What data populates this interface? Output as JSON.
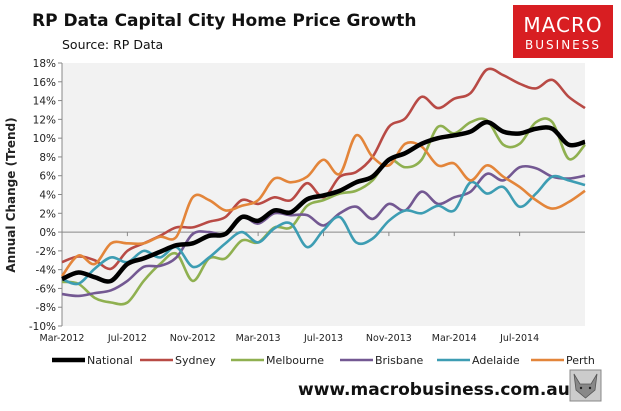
{
  "chart_data": {
    "type": "line",
    "title": "RP Data Capital City Home Price Growth",
    "subtitle": "Source: RP Data",
    "xlabel": "",
    "ylabel": "Annual Change (Trend)",
    "ylim": [
      -10,
      18
    ],
    "y_ticks": [
      "18%",
      "16%",
      "14%",
      "12%",
      "10%",
      "8%",
      "6%",
      "4%",
      "2%",
      "0%",
      "-2%",
      "-4%",
      "-6%",
      "-8%",
      "-10%"
    ],
    "x_ticks": [
      "Mar-2012",
      "Jul-2012",
      "Nov-2012",
      "Mar-2013",
      "Jul-2013",
      "Nov-2013",
      "Mar-2014",
      "Jul-2014"
    ],
    "x": [
      "Mar-2012",
      "Apr-2012",
      "May-2012",
      "Jun-2012",
      "Jul-2012",
      "Aug-2012",
      "Sep-2012",
      "Oct-2012",
      "Nov-2012",
      "Dec-2012",
      "Jan-2013",
      "Feb-2013",
      "Mar-2013",
      "Apr-2013",
      "May-2013",
      "Jun-2013",
      "Jul-2013",
      "Aug-2013",
      "Sep-2013",
      "Oct-2013",
      "Nov-2013",
      "Dec-2013",
      "Jan-2014",
      "Feb-2014",
      "Mar-2014",
      "Apr-2014",
      "May-2014",
      "Jun-2014",
      "Jul-2014",
      "Aug-2014",
      "Sep-2014",
      "Oct-2014",
      "Nov-2014"
    ],
    "grid": false,
    "legend": "bottom",
    "series": [
      {
        "name": "National",
        "color": "#000000",
        "values": [
          -5,
          -4.3,
          -4.8,
          -5.2,
          -3.4,
          -2.8,
          -2.1,
          -1.4,
          -1.2,
          -0.4,
          -0.2,
          1.6,
          1.2,
          2.3,
          2.1,
          3.5,
          3.9,
          4.4,
          5.3,
          5.9,
          7.7,
          8.4,
          9.4,
          10,
          10.3,
          10.7,
          11.7,
          10.7,
          10.5,
          11,
          11,
          9.3,
          9.6
        ]
      },
      {
        "name": "Sydney",
        "color": "#b84a45",
        "values": [
          -3.2,
          -2.6,
          -3,
          -3.9,
          -2,
          -1.2,
          -0.4,
          0.5,
          0.5,
          1.1,
          1.6,
          3.4,
          3,
          3.7,
          3.4,
          5.2,
          3.7,
          5.9,
          6.4,
          8,
          11.2,
          12.1,
          14.4,
          13.2,
          14.2,
          14.8,
          17.3,
          16.7,
          15.8,
          15.3,
          16.2,
          14.4,
          13.2
        ]
      },
      {
        "name": "Melbourne",
        "color": "#8fb050",
        "values": [
          -5.3,
          -5.5,
          -7,
          -7.5,
          -7.5,
          -5.2,
          -3.4,
          -2.3,
          -5.2,
          -2.8,
          -2.8,
          -0.9,
          -1.1,
          0.5,
          0.5,
          2.8,
          3.4,
          4.1,
          4.4,
          5.5,
          7.7,
          6.9,
          7.7,
          11.2,
          10.5,
          11.7,
          11.9,
          9.3,
          9.4,
          11.7,
          11.7,
          7.8,
          9.3
        ]
      },
      {
        "name": "Brisbane",
        "color": "#735892",
        "values": [
          -6.6,
          -6.8,
          -6.5,
          -6.2,
          -5.2,
          -3.7,
          -3.6,
          -2.7,
          -0.2,
          0,
          -0.2,
          1.6,
          0.9,
          2,
          1.8,
          1.8,
          0.7,
          2,
          2.7,
          1.4,
          3,
          2.3,
          4.3,
          3,
          3.7,
          4.3,
          6.2,
          5.5,
          6.9,
          6.8,
          5.9,
          5.7,
          6
        ]
      },
      {
        "name": "Adelaide",
        "color": "#3d9db3",
        "values": [
          -5,
          -5.5,
          -3.9,
          -2.7,
          -3.2,
          -2,
          -2.7,
          -1.6,
          -3.7,
          -2.7,
          -1.2,
          0,
          -1.1,
          0.4,
          0.9,
          -1.6,
          0.2,
          1.6,
          -1.1,
          -0.7,
          1.2,
          2.3,
          2,
          2.8,
          2.3,
          5.3,
          4.1,
          4.8,
          2.7,
          4.1,
          5.9,
          5.5,
          5
        ]
      },
      {
        "name": "Perth",
        "color": "#e3853a",
        "values": [
          -4.7,
          -2.5,
          -3.4,
          -1.2,
          -1.2,
          -1.2,
          -0.5,
          -0.5,
          3.7,
          3.4,
          2.3,
          2.8,
          3.4,
          5.7,
          5.3,
          5.9,
          7.7,
          6.2,
          10.3,
          8,
          7.1,
          9.4,
          9.1,
          7.1,
          7.3,
          5.5,
          7.1,
          5.9,
          4.8,
          3.4,
          2.5,
          3.2,
          4.4
        ]
      }
    ]
  },
  "branding": {
    "logo_line1": "MACRO",
    "logo_line2": "BUSINESS",
    "logo_color": "#d81e22",
    "website": "www.macrobusiness.com.au",
    "mascot_icon": "wolf-icon"
  }
}
